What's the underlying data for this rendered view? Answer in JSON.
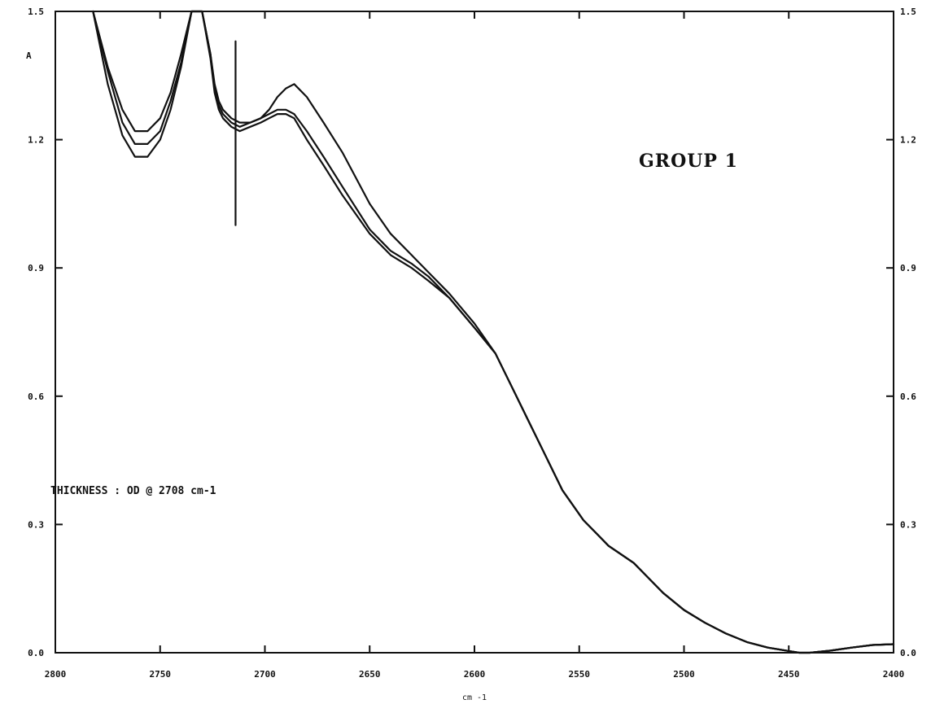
{
  "chart_data": {
    "type": "line",
    "title": "GROUP 1",
    "annotation": "THICKNESS : OD @ 2708 cm-1",
    "ylabel": "A",
    "xlabel": "cm -1",
    "xlim": [
      2800,
      2400
    ],
    "ylim": [
      0.0,
      1.5
    ],
    "x_ticks": [
      "2800",
      "2750",
      "2700",
      "2650",
      "2600",
      "2550",
      "2500",
      "2450",
      "2400"
    ],
    "y_ticks_left": [
      "0.0",
      "0.3",
      "0.6",
      "0.9",
      "1.2",
      "1.5"
    ],
    "y_ticks_right": [
      "0.0",
      "0.3",
      "0.6",
      "0.9",
      "1.2",
      "1.5"
    ],
    "spike": {
      "x": 2714,
      "y_top": 1.43,
      "y_bottom": 1.0
    },
    "series": [
      {
        "x": [
          2782,
          2775,
          2768,
          2762,
          2756,
          2750,
          2745,
          2740,
          2735,
          2730,
          2726,
          2724,
          2722,
          2720,
          2716,
          2712,
          2707,
          2702,
          2698,
          2694,
          2690,
          2686,
          2680,
          2672,
          2663,
          2650,
          2640,
          2630,
          2622,
          2612,
          2600,
          2590,
          2582,
          2575,
          2568,
          2558,
          2548,
          2542,
          2536,
          2530,
          2524,
          2518,
          2510,
          2500,
          2490,
          2480,
          2470,
          2460,
          2450,
          2445,
          2440,
          2430,
          2420,
          2410,
          2400
        ],
        "y": [
          1.5,
          1.37,
          1.27,
          1.22,
          1.22,
          1.25,
          1.31,
          1.4,
          1.5,
          1.5,
          1.4,
          1.33,
          1.29,
          1.27,
          1.25,
          1.24,
          1.24,
          1.25,
          1.27,
          1.3,
          1.32,
          1.33,
          1.3,
          1.24,
          1.17,
          1.05,
          0.98,
          0.93,
          0.89,
          0.84,
          0.77,
          0.7,
          0.62,
          0.55,
          0.48,
          0.38,
          0.31,
          0.28,
          0.25,
          0.23,
          0.21,
          0.18,
          0.14,
          0.1,
          0.07,
          0.045,
          0.025,
          0.012,
          0.004,
          0.0,
          0.0,
          0.005,
          0.012,
          0.018,
          0.02
        ]
      },
      {
        "x": [
          2782,
          2775,
          2768,
          2762,
          2756,
          2750,
          2745,
          2740,
          2735,
          2730,
          2726,
          2724,
          2722,
          2720,
          2716,
          2712,
          2707,
          2702,
          2698,
          2694,
          2690,
          2686,
          2680,
          2672,
          2663,
          2650,
          2640,
          2630,
          2622,
          2612,
          2600,
          2590,
          2582,
          2575,
          2568,
          2558,
          2548,
          2542,
          2536,
          2530,
          2524,
          2518,
          2510,
          2500,
          2490,
          2480,
          2470,
          2460,
          2450,
          2445,
          2440,
          2430,
          2420,
          2410,
          2400
        ],
        "y": [
          1.5,
          1.36,
          1.24,
          1.19,
          1.19,
          1.22,
          1.29,
          1.38,
          1.5,
          1.5,
          1.4,
          1.32,
          1.28,
          1.26,
          1.24,
          1.23,
          1.24,
          1.25,
          1.26,
          1.27,
          1.27,
          1.26,
          1.22,
          1.16,
          1.09,
          0.99,
          0.94,
          0.91,
          0.88,
          0.83,
          0.76,
          0.7,
          0.62,
          0.55,
          0.48,
          0.38,
          0.31,
          0.28,
          0.25,
          0.23,
          0.21,
          0.18,
          0.14,
          0.1,
          0.07,
          0.045,
          0.025,
          0.012,
          0.004,
          0.0,
          0.0,
          0.005,
          0.012,
          0.018,
          0.02
        ]
      },
      {
        "x": [
          2782,
          2775,
          2768,
          2762,
          2756,
          2750,
          2745,
          2740,
          2735,
          2730,
          2726,
          2724,
          2722,
          2720,
          2716,
          2712,
          2707,
          2702,
          2698,
          2694,
          2690,
          2686,
          2680,
          2672,
          2663,
          2650,
          2640,
          2630,
          2622,
          2612,
          2600,
          2590,
          2582,
          2575,
          2568,
          2558,
          2548,
          2542,
          2536,
          2530,
          2524,
          2518,
          2510,
          2500,
          2490,
          2480,
          2470,
          2460,
          2450,
          2445,
          2440,
          2430,
          2420,
          2410,
          2400
        ],
        "y": [
          1.5,
          1.33,
          1.21,
          1.16,
          1.16,
          1.2,
          1.27,
          1.37,
          1.5,
          1.5,
          1.39,
          1.31,
          1.27,
          1.25,
          1.23,
          1.22,
          1.23,
          1.24,
          1.25,
          1.26,
          1.26,
          1.25,
          1.2,
          1.14,
          1.07,
          0.98,
          0.93,
          0.9,
          0.87,
          0.83,
          0.76,
          0.7,
          0.62,
          0.55,
          0.48,
          0.38,
          0.31,
          0.28,
          0.25,
          0.23,
          0.21,
          0.18,
          0.14,
          0.1,
          0.07,
          0.045,
          0.025,
          0.012,
          0.004,
          0.0,
          0.0,
          0.005,
          0.012,
          0.018,
          0.02
        ]
      }
    ]
  }
}
